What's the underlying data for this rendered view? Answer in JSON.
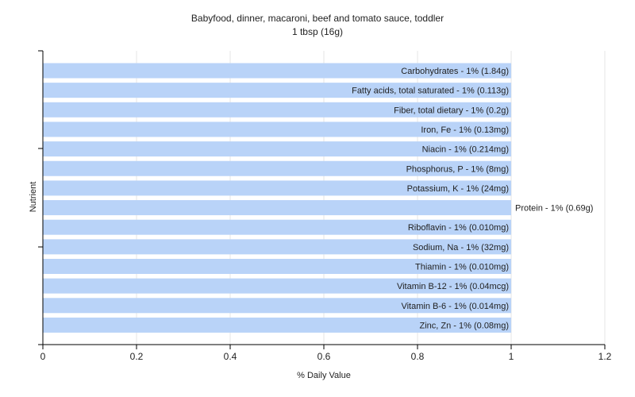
{
  "chart_data": {
    "type": "bar",
    "orientation": "horizontal",
    "title": "Babyfood, dinner, macaroni, beef and tomato sauce, toddler",
    "subtitle": "1 tbsp (16g)",
    "xlabel": "% Daily Value",
    "ylabel": "Nutrient",
    "xlim": [
      0,
      1.2
    ],
    "xticks": [
      "0",
      "0.2",
      "0.4",
      "0.6",
      "0.8",
      "1",
      "1.2"
    ],
    "grid": true,
    "bar_color": "#b9d3f8",
    "categories": [
      "Carbohydrates",
      "Fatty acids, total saturated",
      "Fiber, total dietary",
      "Iron, Fe",
      "Niacin",
      "Phosphorus, P",
      "Potassium, K",
      "Protein",
      "Riboflavin",
      "Sodium, Na",
      "Thiamin",
      "Vitamin B-12",
      "Vitamin B-6",
      "Zinc, Zn"
    ],
    "values": [
      1,
      1,
      1,
      1,
      1,
      1,
      1,
      1,
      1,
      1,
      1,
      1,
      1,
      1
    ],
    "labels": [
      "Carbohydrates - 1% (1.84g)",
      "Fatty acids, total saturated - 1% (0.113g)",
      "Fiber, total dietary - 1% (0.2g)",
      "Iron, Fe - 1% (0.13mg)",
      "Niacin - 1% (0.214mg)",
      "Phosphorus, P - 1% (8mg)",
      "Potassium, K - 1% (24mg)",
      "Protein - 1% (0.69g)",
      "Riboflavin - 1% (0.010mg)",
      "Sodium, Na - 1% (32mg)",
      "Thiamin - 1% (0.010mg)",
      "Vitamin B-12 - 1% (0.04mcg)",
      "Vitamin B-6 - 1% (0.014mg)",
      "Zinc, Zn - 1% (0.08mg)"
    ],
    "outside_label_indices": [
      7
    ]
  }
}
